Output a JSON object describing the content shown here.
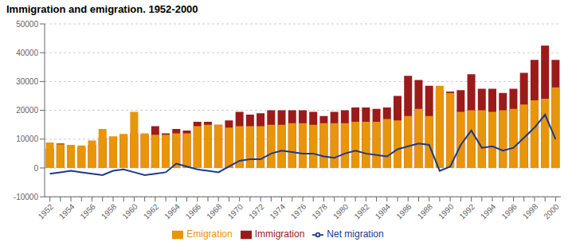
{
  "chart_data": {
    "type": "bar",
    "title": "Immigration and emigration. 1952-2000",
    "categories": [
      "1952",
      null,
      "1954",
      null,
      "1956",
      null,
      "1958",
      null,
      "1960",
      null,
      "1962",
      null,
      "1964",
      null,
      "1966",
      null,
      "1968",
      null,
      "1970",
      null,
      "1972",
      null,
      "1974",
      null,
      "1976",
      null,
      "1978",
      null,
      "1980",
      null,
      "1982",
      null,
      "1984",
      null,
      "1986",
      null,
      "1988",
      null,
      "1990",
      null,
      "1992",
      null,
      "1994",
      null,
      "1996",
      null,
      "1998",
      null,
      "2000"
    ],
    "series": [
      {
        "name": "Immigration",
        "type": "bar",
        "color": "#9B1B1B",
        "values": [
          6700,
          8500,
          7500,
          7200,
          8000,
          10500,
          10800,
          11300,
          12000,
          11500,
          14500,
          12000,
          13500,
          13000,
          16000,
          16000,
          15000,
          16500,
          19500,
          18500,
          19000,
          20000,
          20000,
          20000,
          20000,
          19500,
          18000,
          19500,
          20000,
          21000,
          21000,
          20500,
          21000,
          25000,
          32000,
          30500,
          28500,
          27000,
          26500,
          27000,
          32500,
          27500,
          27500,
          26000,
          27500,
          33000,
          37500,
          42500,
          37500
        ]
      },
      {
        "name": "Emigration",
        "type": "bar",
        "color": "#E8950A",
        "values": [
          8800,
          8200,
          8000,
          7800,
          9500,
          13500,
          11000,
          11800,
          19500,
          12000,
          11500,
          11500,
          12000,
          12000,
          14500,
          15000,
          15000,
          14000,
          14500,
          14500,
          14500,
          15000,
          15000,
          15500,
          15500,
          15000,
          15500,
          15500,
          15500,
          16000,
          16000,
          16000,
          17000,
          16500,
          18000,
          20500,
          18000,
          28500,
          26000,
          19500,
          20000,
          20000,
          19500,
          20000,
          20500,
          22000,
          23500,
          24000,
          28000
        ]
      },
      {
        "name": "Net migration",
        "type": "line",
        "color": "#1A3A8A",
        "values": [
          -2000,
          -1500,
          -1000,
          -1500,
          -2000,
          -2500,
          -1000,
          -500,
          -1500,
          -2500,
          -2000,
          -1500,
          1500,
          500,
          -500,
          -1000,
          -1500,
          500,
          2500,
          3000,
          3000,
          5000,
          6000,
          5500,
          5000,
          5000,
          4000,
          3500,
          5000,
          6000,
          5000,
          4500,
          4000,
          6500,
          7500,
          8500,
          8000,
          -1000,
          500,
          8000,
          13000,
          7000,
          7500,
          6000,
          7000,
          10500,
          14000,
          18500,
          10000
        ]
      }
    ],
    "ylim": [
      -10000,
      50000
    ],
    "yticks": [
      -10000,
      0,
      10000,
      20000,
      30000,
      40000,
      50000
    ],
    "grid": true,
    "legend": "bottom"
  }
}
